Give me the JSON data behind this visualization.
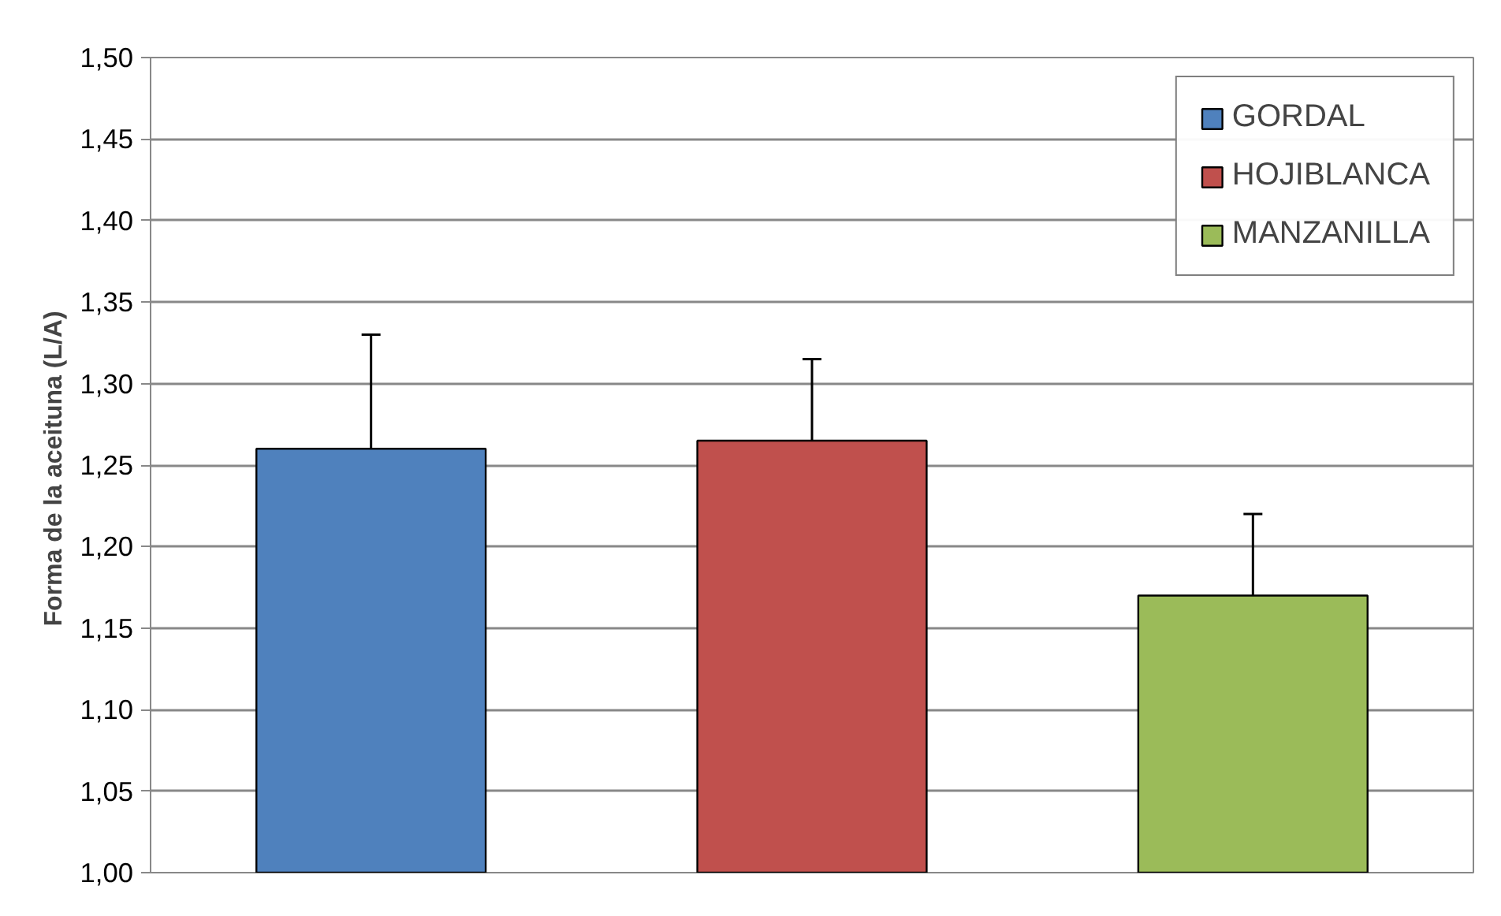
{
  "chart_data": {
    "type": "bar",
    "ylabel": "Forma de la aceituna  (L/A)",
    "categories": [
      null
    ],
    "series": [
      {
        "name": "GORDAL",
        "color": "#4f81bd",
        "values": [
          1.26
        ],
        "errors": [
          0.07
        ]
      },
      {
        "name": "HOJIBLANCA",
        "color": "#c0504d",
        "values": [
          1.265
        ],
        "errors": [
          0.05
        ]
      },
      {
        "name": "MANZANILLA",
        "color": "#9bbb59",
        "values": [
          1.17
        ],
        "errors": [
          0.05
        ]
      }
    ],
    "ylim": [
      1.0,
      1.5
    ],
    "yticks": [
      {
        "value": 1.0,
        "label": "1,00"
      },
      {
        "value": 1.05,
        "label": "1,05"
      },
      {
        "value": 1.1,
        "label": "1,10"
      },
      {
        "value": 1.15,
        "label": "1,15"
      },
      {
        "value": 1.2,
        "label": "1,20"
      },
      {
        "value": 1.25,
        "label": "1,25"
      },
      {
        "value": 1.3,
        "label": "1,30"
      },
      {
        "value": 1.35,
        "label": "1,35"
      },
      {
        "value": 1.4,
        "label": "1,40"
      },
      {
        "value": 1.45,
        "label": "1,45"
      },
      {
        "value": 1.5,
        "label": "1,50"
      }
    ],
    "grid": "y",
    "legend": "top right",
    "tick_labels": "y"
  }
}
